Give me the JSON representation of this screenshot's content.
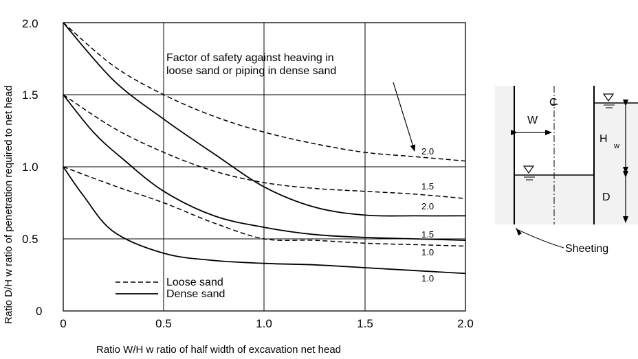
{
  "chart_data": {
    "type": "line",
    "xlabel": "Ratio W/H w ratio of half width of excavation net head",
    "ylabel": "Ratio D/H w ratio of penetration required to net head",
    "xlim": [
      0,
      2.0
    ],
    "ylim": [
      0,
      2.0
    ],
    "x_ticks": [
      "0",
      "0.5",
      "1.0",
      "1.5",
      "2.0"
    ],
    "y_ticks": [
      "0",
      "0.5",
      "1.0",
      "1.5",
      "2.0"
    ],
    "grid": true,
    "annotation": {
      "line1": "Factor of safety against heaving in",
      "line2": "loose sand or piping in dense sand"
    },
    "legend": {
      "placement": "bottom-left",
      "loose_label": "Loose sand",
      "dense_label": "Dense sand"
    },
    "series": [
      {
        "name": "Loose sand",
        "style": "dashed",
        "label": "2.0",
        "points": [
          [
            0,
            2.0
          ],
          [
            0.25,
            1.7
          ],
          [
            0.5,
            1.5
          ],
          [
            0.75,
            1.35
          ],
          [
            1.0,
            1.24
          ],
          [
            1.25,
            1.16
          ],
          [
            1.5,
            1.1
          ],
          [
            1.75,
            1.07
          ],
          [
            2.0,
            1.04
          ]
        ]
      },
      {
        "name": "Loose sand",
        "style": "dashed",
        "label": "1.5",
        "points": [
          [
            0,
            1.5
          ],
          [
            0.25,
            1.27
          ],
          [
            0.5,
            1.1
          ],
          [
            0.75,
            0.97
          ],
          [
            1.0,
            0.89
          ],
          [
            1.25,
            0.85
          ],
          [
            1.5,
            0.83
          ],
          [
            1.75,
            0.81
          ],
          [
            2.0,
            0.78
          ]
        ]
      },
      {
        "name": "Loose sand",
        "style": "dashed",
        "label": "1.0",
        "points": [
          [
            0,
            1.0
          ],
          [
            0.25,
            0.87
          ],
          [
            0.5,
            0.75
          ],
          [
            0.75,
            0.61
          ],
          [
            1.0,
            0.5
          ],
          [
            1.25,
            0.49
          ],
          [
            1.5,
            0.47
          ],
          [
            1.75,
            0.46
          ],
          [
            2.0,
            0.45
          ]
        ]
      },
      {
        "name": "Dense sand",
        "style": "solid",
        "label": "2.0",
        "points": [
          [
            0,
            2.0
          ],
          [
            0.25,
            1.6
          ],
          [
            0.5,
            1.33
          ],
          [
            0.75,
            1.09
          ],
          [
            1.0,
            0.86
          ],
          [
            1.25,
            0.72
          ],
          [
            1.5,
            0.665
          ],
          [
            1.75,
            0.66
          ],
          [
            2.0,
            0.66
          ]
        ]
      },
      {
        "name": "Dense sand",
        "style": "solid",
        "label": "1.5",
        "points": [
          [
            0,
            1.5
          ],
          [
            0.15,
            1.24
          ],
          [
            0.3,
            1.05
          ],
          [
            0.5,
            0.83
          ],
          [
            0.75,
            0.66
          ],
          [
            1.0,
            0.58
          ],
          [
            1.25,
            0.53
          ],
          [
            1.5,
            0.51
          ],
          [
            1.75,
            0.5
          ],
          [
            2.0,
            0.49
          ]
        ]
      },
      {
        "name": "Dense sand",
        "style": "solid",
        "label": "1.0",
        "points": [
          [
            0,
            1.0
          ],
          [
            0.1,
            0.8
          ],
          [
            0.25,
            0.55
          ],
          [
            0.5,
            0.4
          ],
          [
            0.75,
            0.35
          ],
          [
            1.0,
            0.33
          ],
          [
            1.25,
            0.32
          ],
          [
            1.5,
            0.3
          ],
          [
            1.75,
            0.28
          ],
          [
            2.0,
            0.26
          ]
        ]
      }
    ]
  },
  "diagram": {
    "w_label": "W",
    "centerline_label": "C",
    "hw_label": "H",
    "hw_sub": "w",
    "d_label": "D",
    "sheeting_label": "Sheeting"
  }
}
